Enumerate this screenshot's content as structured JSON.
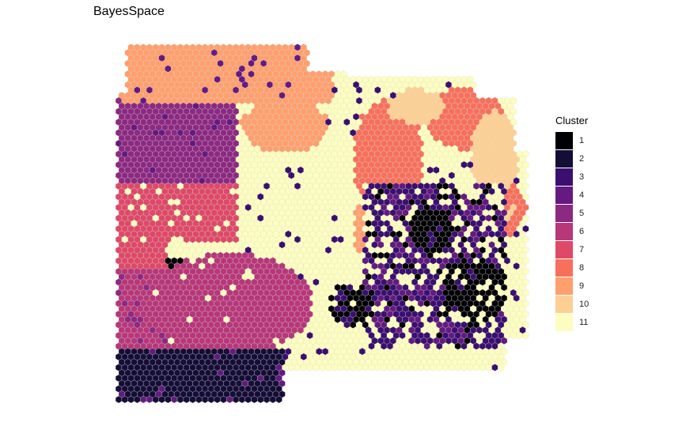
{
  "chart_data": {
    "type": "heatmap",
    "title": "BayesSpace",
    "legend": {
      "title": "Cluster",
      "position": "right",
      "items": [
        {
          "label": "1",
          "color": "#000004"
        },
        {
          "label": "2",
          "color": "#140e36"
        },
        {
          "label": "3",
          "color": "#3b0f70"
        },
        {
          "label": "4",
          "color": "#641a80"
        },
        {
          "label": "5",
          "color": "#8c2981"
        },
        {
          "label": "6",
          "color": "#b73779"
        },
        {
          "label": "7",
          "color": "#de4968"
        },
        {
          "label": "8",
          "color": "#f7705c"
        },
        {
          "label": "9",
          "color": "#fe9f6d"
        },
        {
          "label": "10",
          "color": "#fecf92"
        },
        {
          "label": "11",
          "color": "#fcfdbf"
        }
      ]
    },
    "grid": false,
    "axes_visible": false,
    "spot_shape": "hexagon",
    "spatial_regions": [
      {
        "cluster": "9",
        "description": "upper band and right-hemisphere lobes"
      },
      {
        "cluster": "5",
        "description": "upper-left block"
      },
      {
        "cluster": "7",
        "description": "left-middle blocks"
      },
      {
        "cluster": "11",
        "description": "central diagonal band and periphery"
      },
      {
        "cluster": "6",
        "description": "lower-left large region"
      },
      {
        "cluster": "2",
        "description": "bottom-left band"
      },
      {
        "cluster": "1",
        "description": "right-center and lower-right dense patches"
      },
      {
        "cluster": "3",
        "description": "scattered around cluster 1 patches"
      },
      {
        "cluster": "8",
        "description": "upper-right lobes"
      },
      {
        "cluster": "10",
        "description": "right lobe interior"
      }
    ]
  }
}
